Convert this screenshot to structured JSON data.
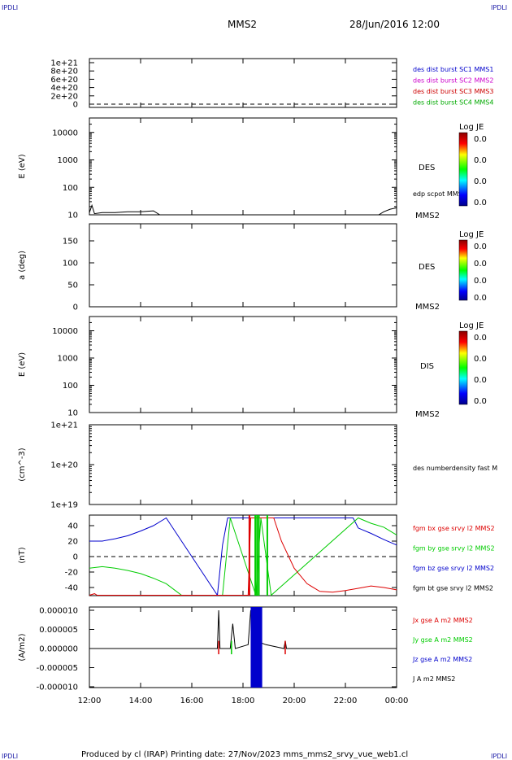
{
  "corner_label": "IPDLI",
  "header": {
    "spacecraft": "MMS2",
    "datetime": "28/Jun/2016 12:00"
  },
  "footer": "Produced by cl (IRAP)   Printing date: 27/Nov/2023   mms_mms2_srvy_vue_web1.cl",
  "colors": {
    "mms1": "#0000cc",
    "mms2": "#cc00cc",
    "mms3": "#cc0000",
    "mms4": "#00aa00",
    "bx": "#dd0000",
    "by": "#00cc00",
    "bz": "#0000cc",
    "bt": "#000000"
  },
  "colorbar": {
    "title": "Log JE",
    "ticks": [
      "0.0",
      "0.0",
      "0.0",
      "0.0"
    ]
  },
  "chart_data": [
    {
      "type": "line",
      "panel": "distribution-counts",
      "ylim": [
        0,
        1.1e+21
      ],
      "tick_labels": [
        "0",
        "2e+20",
        "4e+20",
        "6e+20",
        "8e+20",
        "1e+21"
      ],
      "legend": [
        "des dist burst SC1 MMS1",
        "des dist burst SC2 MMS2",
        "des dist burst SC3 MMS3",
        "des dist burst SC4 MMS4"
      ],
      "reference_line": 0
    },
    {
      "type": "line",
      "panel": "des-energy",
      "ylabel": "E (eV)",
      "yscale": "log",
      "ylim": [
        10,
        20000
      ],
      "tick_labels": [
        "10",
        "100",
        "1000",
        "10000"
      ],
      "right_labels": [
        "DES",
        "edp scpot MMS2",
        "MMS2"
      ],
      "series": [
        {
          "name": "edp scpot MMS2",
          "x": [
            12.0,
            12.1,
            12.2,
            12.5,
            13.0,
            13.5,
            14.0,
            14.5,
            14.75,
            23.3,
            23.5,
            23.75,
            24.0
          ],
          "y": [
            12,
            22,
            11,
            12,
            12,
            13,
            13,
            14,
            10,
            10,
            13,
            16,
            18
          ]
        }
      ]
    },
    {
      "type": "heatmap",
      "panel": "des-pitch",
      "ylabel": "a (deg)",
      "ylim": [
        0,
        180
      ],
      "tick_labels": [
        "0",
        "50",
        "100",
        "150"
      ],
      "right_labels": [
        "DES",
        "MMS2"
      ]
    },
    {
      "type": "heatmap",
      "panel": "dis-energy",
      "ylabel": "E (eV)",
      "yscale": "log",
      "ylim": [
        10,
        20000
      ],
      "tick_labels": [
        "10",
        "100",
        "1000",
        "10000"
      ],
      "right_labels": [
        "DIS",
        "MMS2"
      ]
    },
    {
      "type": "line",
      "panel": "density",
      "ylabel": "(cm^-3)",
      "yscale": "log",
      "ylim": [
        1e+19,
        1e+21
      ],
      "tick_labels": [
        "1e+19",
        "1e+20",
        "1e+21"
      ],
      "legend": [
        "des numberdensity fast M"
      ]
    },
    {
      "type": "line",
      "panel": "magnetic-field",
      "ylabel": "(nT)",
      "ylim": [
        -50,
        50
      ],
      "tick_labels": [
        "-40",
        "-20",
        "0",
        "20",
        "40"
      ],
      "reference_line": 0,
      "legend": [
        "fgm bx gse srvy l2 MMS2",
        "fgm by gse srvy l2 MMS2",
        "fgm bz gse srvy l2 MMS2",
        "fgm bt gse srvy l2 MMS2"
      ],
      "series": [
        {
          "name": "fgm bz gse srvy l2 MMS2",
          "x": [
            12.0,
            12.5,
            13.0,
            13.5,
            14.0,
            14.5,
            15.0,
            17.0,
            17.2,
            17.4,
            22.3,
            22.5,
            23.0,
            23.5,
            24.0
          ],
          "y": [
            20,
            20,
            23,
            27,
            33,
            40,
            50,
            -50,
            15,
            50,
            50,
            37,
            30,
            22,
            15
          ]
        },
        {
          "name": "fgm by gse srvy l2 MMS2",
          "x": [
            12.0,
            12.5,
            13.0,
            13.5,
            14.0,
            14.5,
            15.0,
            15.4,
            15.6,
            17.2,
            17.5,
            18.5,
            18.7,
            19.1,
            22.5,
            23.0,
            23.5,
            24.0
          ],
          "y": [
            -15,
            -13,
            -15,
            -18,
            -22,
            -28,
            -35,
            -45,
            -50,
            -50,
            50,
            -50,
            50,
            -50,
            50,
            43,
            38,
            28
          ]
        },
        {
          "name": "fgm bx gse srvy l2 MMS2",
          "x": [
            12.0,
            12.2,
            12.3,
            18.2,
            18.3,
            19.2,
            19.5,
            20.0,
            20.5,
            21.0,
            21.5,
            22.0,
            22.5,
            23.0,
            23.5,
            24.0
          ],
          "y": [
            -50,
            -48,
            -50,
            -50,
            50,
            50,
            20,
            -15,
            -35,
            -45,
            -46,
            -44,
            -41,
            -38,
            -40,
            -43
          ]
        }
      ]
    },
    {
      "type": "line",
      "panel": "current-density",
      "ylabel": "(A/m2)",
      "ylim": [
        -1e-05,
        1e-05
      ],
      "tick_labels": [
        "-0.000010",
        "-0.000005",
        "0.000000",
        "0.000005",
        "0.000010"
      ],
      "legend": [
        "Jx gse A m2 MMS2",
        "Jy gse A m2 MMS2",
        "Jz gse A m2 MMS2",
        "J A m2 MMS2"
      ],
      "series": [
        {
          "name": "J A m2 MMS2",
          "x": [
            12.0,
            17.0,
            17.05,
            17.1,
            17.5,
            17.6,
            17.7,
            18.2,
            18.3,
            18.5,
            18.7,
            18.9,
            19.6,
            19.65,
            19.7,
            23.0,
            24.0
          ],
          "y": [
            0,
            0,
            1e-05,
            0,
            0,
            6.5e-06,
            0,
            1e-06,
            1e-05,
            5e-06,
            1.5e-06,
            1e-06,
            0,
            2e-06,
            0,
            0,
            0
          ]
        }
      ]
    }
  ],
  "x_axis": {
    "ticks": [
      "12:00",
      "14:00",
      "16:00",
      "18:00",
      "20:00",
      "22:00",
      "00:00"
    ],
    "range_hours": [
      12,
      24
    ]
  }
}
